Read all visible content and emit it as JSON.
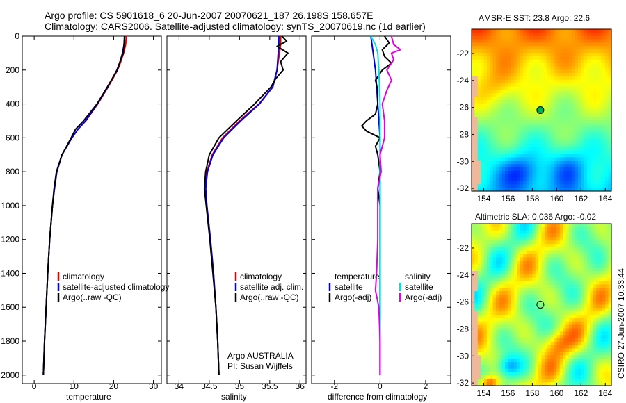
{
  "title": {
    "line1": "Argo profile: CS 5901618_6 20-Jun-2007 20070621_187 26.198S 158.657E",
    "line2": "Climatology: CARS2006. Satellite-adjusted climatology: synTS_20070619.nc (1d earlier)"
  },
  "side_note": "CSIRO 27-Jun-2007 10:33:44",
  "colors": {
    "climatology": "#e00000",
    "satellite": "#0000e0",
    "argo": "#000000",
    "sat_diff_cyan": "#00e0e0",
    "argo_adj_magenta": "#e000e0"
  },
  "chart_data": [
    {
      "type": "line",
      "id": "temperature",
      "xlabel": "temperature",
      "ylabel": "",
      "xlim": [
        -3,
        32
      ],
      "ylim": [
        2050,
        0
      ],
      "xticks": [
        0,
        10,
        20,
        30
      ],
      "yticks": [
        0,
        200,
        400,
        600,
        800,
        1000,
        1200,
        1400,
        1600,
        1800,
        2000
      ],
      "legend": [
        "climatology",
        "satellite-adjusted climatology",
        "Argo(..raw -QC)"
      ],
      "series": [
        {
          "name": "climatology",
          "color": "red",
          "depth": [
            0,
            50,
            100,
            150,
            200,
            300,
            400,
            500,
            550,
            600,
            700,
            800,
            900,
            1000,
            1200,
            1400,
            1600,
            1800,
            2000
          ],
          "values": [
            23.2,
            23.0,
            22.5,
            21.8,
            21.0,
            18.6,
            16.0,
            13.0,
            11.0,
            9.5,
            7.0,
            5.7,
            5.1,
            4.6,
            3.9,
            3.4,
            3.0,
            2.6,
            2.3
          ]
        },
        {
          "name": "satellite-adjusted climatology",
          "color": "blue",
          "depth": [
            0,
            50,
            100,
            150,
            200,
            300,
            400,
            500,
            550,
            600,
            700,
            800,
            900,
            1000,
            1200,
            1400,
            1600,
            1800,
            2000
          ],
          "values": [
            22.8,
            22.6,
            22.2,
            21.6,
            20.8,
            18.5,
            15.9,
            12.9,
            11.0,
            9.5,
            7.0,
            5.7,
            5.1,
            4.6,
            3.9,
            3.4,
            3.0,
            2.6,
            2.3
          ]
        },
        {
          "name": "Argo(..raw -QC)",
          "color": "black",
          "depth": [
            0,
            50,
            100,
            150,
            200,
            300,
            400,
            500,
            550,
            600,
            700,
            800,
            900,
            1000,
            1200,
            1400,
            1600,
            1800,
            2000
          ],
          "values": [
            22.7,
            22.6,
            22.4,
            21.6,
            20.9,
            18.4,
            15.8,
            12.4,
            10.4,
            9.3,
            7.0,
            5.6,
            5.0,
            4.6,
            3.9,
            3.4,
            3.0,
            2.6,
            2.3
          ]
        }
      ]
    },
    {
      "type": "line",
      "id": "salinity",
      "xlabel": "salinity",
      "ylabel": "",
      "xlim": [
        33.8,
        36.1
      ],
      "ylim": [
        2050,
        0
      ],
      "xticks": [
        34,
        34.5,
        35,
        35.5,
        36
      ],
      "yticks": [
        0,
        200,
        400,
        600,
        800,
        1000,
        1200,
        1400,
        1600,
        1800,
        2000
      ],
      "legend": [
        "climatology",
        "satellite adj. clim.",
        "Argo(..raw -QC)"
      ],
      "annotation": [
        "Argo AUSTRALIA",
        "PI: Susan Wijffels"
      ],
      "series": [
        {
          "name": "climatology",
          "color": "red",
          "depth": [
            0,
            50,
            100,
            200,
            300,
            400,
            500,
            600,
            700,
            800,
            900,
            1000,
            1200,
            1400,
            1600,
            1800,
            2000
          ],
          "values": [
            35.68,
            35.68,
            35.66,
            35.62,
            35.55,
            35.32,
            35.0,
            34.72,
            34.55,
            34.46,
            34.44,
            34.46,
            34.52,
            34.57,
            34.61,
            34.64,
            34.66
          ]
        },
        {
          "name": "satellite adj. clim.",
          "color": "blue",
          "depth": [
            0,
            50,
            100,
            200,
            300,
            400,
            500,
            600,
            700,
            800,
            900,
            1000,
            1200,
            1400,
            1600,
            1800,
            2000
          ],
          "values": [
            35.65,
            35.65,
            35.64,
            35.62,
            35.55,
            35.33,
            35.02,
            34.74,
            34.56,
            34.47,
            34.44,
            34.46,
            34.52,
            34.57,
            34.61,
            34.64,
            34.66
          ]
        },
        {
          "name": "Argo(..raw -QC)",
          "color": "black",
          "depth": [
            0,
            30,
            60,
            100,
            150,
            200,
            250,
            300,
            400,
            500,
            600,
            700,
            800,
            900,
            1000,
            1200,
            1400,
            1600,
            1800,
            2000
          ],
          "values": [
            35.7,
            35.78,
            35.62,
            35.8,
            35.68,
            35.72,
            35.6,
            35.52,
            35.25,
            34.95,
            34.66,
            34.5,
            34.44,
            34.42,
            34.45,
            34.51,
            34.56,
            34.61,
            34.64,
            34.66
          ]
        }
      ]
    },
    {
      "type": "line",
      "id": "difference",
      "xlabel": "difference from climatology",
      "ylabel": "",
      "xlim": [
        -3,
        3.1
      ],
      "ylim": [
        2050,
        0
      ],
      "xticks": [
        -2,
        0,
        2
      ],
      "yticks": [
        0,
        200,
        400,
        600,
        800,
        1000,
        1200,
        1400,
        1600,
        1800,
        2000
      ],
      "legend_left": [
        "temperature",
        "satellite",
        "Argo(-adj)"
      ],
      "legend_right": [
        "salinity",
        "satellite",
        "Argo(-adj)"
      ],
      "series": [
        {
          "name": "temperature satellite",
          "color": "blue",
          "depth": [
            0,
            100,
            200,
            400,
            600,
            1000,
            2000
          ],
          "values": [
            -0.4,
            -0.3,
            -0.2,
            -0.1,
            0.0,
            0.0,
            0.0
          ]
        },
        {
          "name": "temperature Argo(-adj)",
          "color": "black",
          "depth": [
            0,
            40,
            80,
            120,
            160,
            200,
            260,
            320,
            400,
            460,
            500,
            530,
            560,
            600,
            650,
            700,
            800,
            900,
            1000,
            1200,
            1400,
            1600,
            1800,
            2000
          ],
          "values": [
            0.2,
            0.4,
            0.1,
            0.2,
            0.5,
            0.1,
            -0.2,
            -0.1,
            -0.1,
            -0.2,
            -0.6,
            -0.8,
            -0.6,
            0.0,
            -0.2,
            -0.1,
            0.0,
            -0.1,
            0.0,
            0.0,
            0.0,
            0.0,
            0.0,
            0.0
          ]
        },
        {
          "name": "salinity satellite",
          "color": "cyan",
          "depth": [
            0,
            50,
            100,
            200,
            400,
            600,
            1000,
            2000
          ],
          "values": [
            -0.4,
            -0.2,
            -0.1,
            -0.05,
            0.0,
            0.0,
            0.0,
            0.0
          ]
        },
        {
          "name": "salinity Argo(-adj)",
          "color": "magenta",
          "depth": [
            0,
            50,
            80,
            100,
            140,
            200,
            260,
            320,
            400,
            500,
            600,
            700,
            800,
            900,
            1000,
            1200,
            1400,
            1500,
            1600,
            1800,
            2000
          ],
          "values": [
            0.5,
            0.6,
            0.9,
            0.5,
            0.6,
            0.3,
            0.5,
            0.3,
            0.1,
            0.2,
            0.2,
            0.0,
            0.05,
            -0.1,
            -0.1,
            -0.1,
            -0.15,
            -0.2,
            -0.05,
            0.0,
            0.0
          ]
        }
      ]
    },
    {
      "type": "heatmap",
      "id": "sst-map",
      "title": "AMSR-E SST: 23.8 Argo: 22.6",
      "xlim": [
        153,
        164.5
      ],
      "ylim": [
        -32.2,
        -20.2
      ],
      "xticks": [
        154,
        156,
        158,
        160,
        162,
        164
      ],
      "yticks": [
        -22,
        -24,
        -26,
        -28,
        -30,
        -32
      ],
      "marker": {
        "lon": 158.657,
        "lat": -26.198,
        "color": "#00b050"
      }
    },
    {
      "type": "heatmap",
      "id": "sla-map",
      "title": "Altimetric SLA: 0.036 Argo: -0.02",
      "xlim": [
        153,
        164.5
      ],
      "ylim": [
        -32.2,
        -20.2
      ],
      "xticks": [
        154,
        156,
        158,
        160,
        162,
        164
      ],
      "yticks": [
        -22,
        -24,
        -26,
        -28,
        -30,
        -32
      ],
      "marker": {
        "lon": 158.657,
        "lat": -26.198,
        "color": "#00b050"
      }
    }
  ]
}
